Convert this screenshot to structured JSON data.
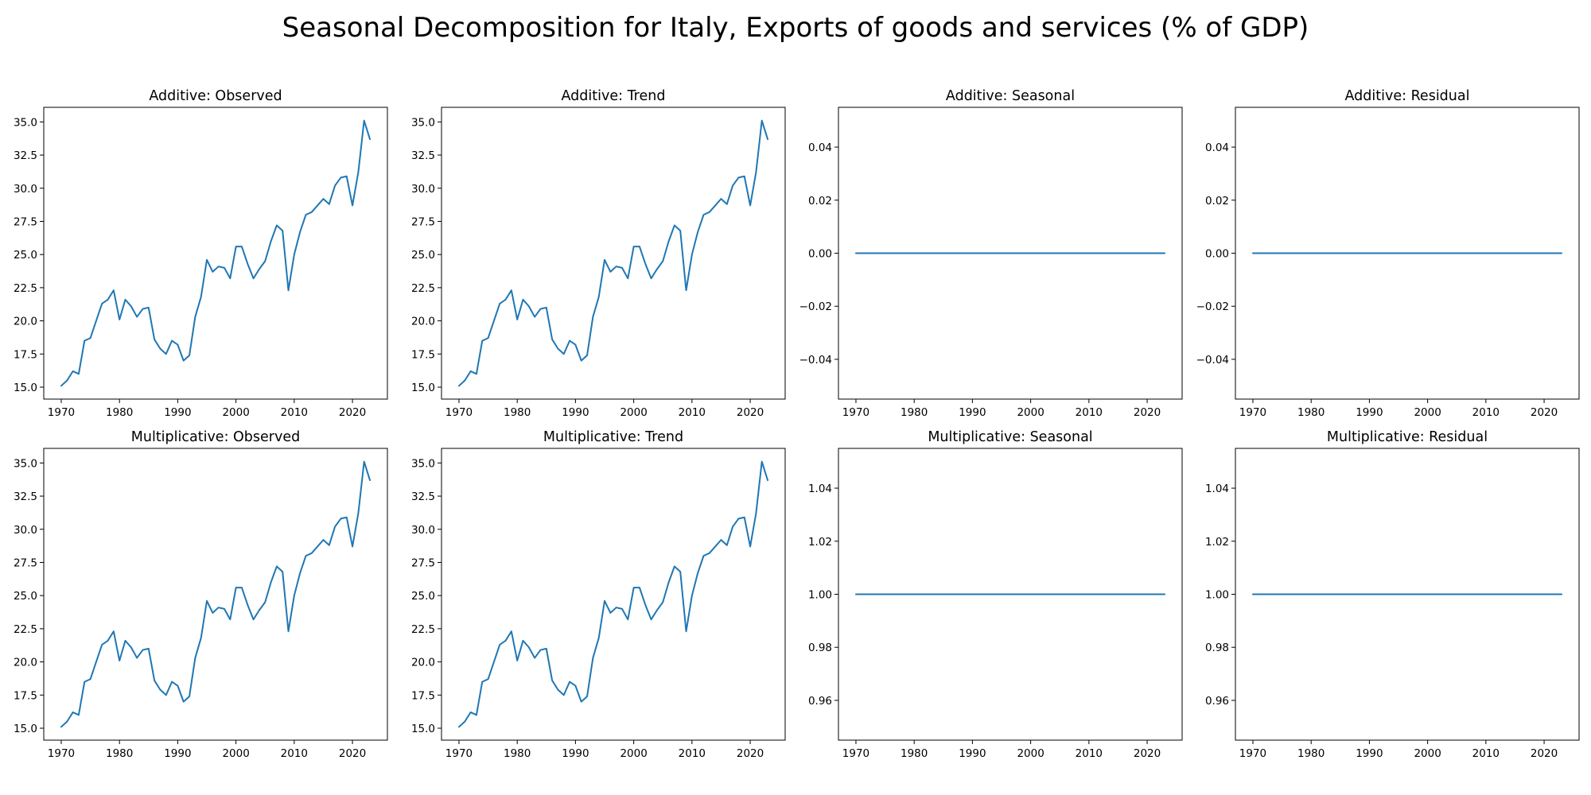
{
  "figure": {
    "title": "Seasonal Decomposition for Italy, Exports of goods and services (% of GDP)"
  },
  "chart_data": [
    {
      "id": "additive-observed",
      "type": "line",
      "title": "Additive: Observed",
      "xlabel": "",
      "ylabel": "",
      "color": "#1f77b4",
      "xlim": [
        1967,
        2026
      ],
      "ylim": [
        14.1,
        36.1
      ],
      "xticks": [
        1970,
        1980,
        1990,
        2000,
        2010,
        2020
      ],
      "xtick_labels": [
        "1970",
        "1980",
        "1990",
        "2000",
        "2010",
        "2020"
      ],
      "yticks": [
        15,
        17.5,
        20,
        22.5,
        25,
        27.5,
        30,
        32.5,
        35
      ],
      "ytick_labels": [
        "15.0",
        "17.5",
        "20.0",
        "22.5",
        "25.0",
        "27.5",
        "30.0",
        "32.5",
        "35.0"
      ],
      "series": [
        {
          "x": [
            1970,
            1971,
            1972,
            1973,
            1974,
            1975,
            1976,
            1977,
            1978,
            1979,
            1980,
            1981,
            1982,
            1983,
            1984,
            1985,
            1986,
            1987,
            1988,
            1989,
            1990,
            1991,
            1992,
            1993,
            1994,
            1995,
            1996,
            1997,
            1998,
            1999,
            2000,
            2001,
            2002,
            2003,
            2004,
            2005,
            2006,
            2007,
            2008,
            2009,
            2010,
            2011,
            2012,
            2013,
            2014,
            2015,
            2016,
            2017,
            2018,
            2019,
            2020,
            2021,
            2022,
            2023
          ],
          "values": [
            15.1,
            15.5,
            16.2,
            16.0,
            18.5,
            18.7,
            20.0,
            21.3,
            21.6,
            22.3,
            20.1,
            21.6,
            21.1,
            20.3,
            20.9,
            21.0,
            18.6,
            17.9,
            17.5,
            18.5,
            18.2,
            17.0,
            17.4,
            20.3,
            21.8,
            24.6,
            23.7,
            24.1,
            24.0,
            23.2,
            25.6,
            25.6,
            24.3,
            23.2,
            23.9,
            24.5,
            26.0,
            27.2,
            26.8,
            22.3,
            25.0,
            26.7,
            28.0,
            28.2,
            28.7,
            29.2,
            28.8,
            30.2,
            30.8,
            30.9,
            28.7,
            31.2,
            35.1,
            33.7
          ]
        }
      ]
    },
    {
      "id": "additive-trend",
      "type": "line",
      "title": "Additive: Trend",
      "xlabel": "",
      "ylabel": "",
      "color": "#1f77b4",
      "xlim": [
        1967,
        2026
      ],
      "ylim": [
        14.1,
        36.1
      ],
      "xticks": [
        1970,
        1980,
        1990,
        2000,
        2010,
        2020
      ],
      "xtick_labels": [
        "1970",
        "1980",
        "1990",
        "2000",
        "2010",
        "2020"
      ],
      "yticks": [
        15,
        17.5,
        20,
        22.5,
        25,
        27.5,
        30,
        32.5,
        35
      ],
      "ytick_labels": [
        "15.0",
        "17.5",
        "20.0",
        "22.5",
        "25.0",
        "27.5",
        "30.0",
        "32.5",
        "35.0"
      ],
      "series": [
        {
          "x": [
            1970,
            1971,
            1972,
            1973,
            1974,
            1975,
            1976,
            1977,
            1978,
            1979,
            1980,
            1981,
            1982,
            1983,
            1984,
            1985,
            1986,
            1987,
            1988,
            1989,
            1990,
            1991,
            1992,
            1993,
            1994,
            1995,
            1996,
            1997,
            1998,
            1999,
            2000,
            2001,
            2002,
            2003,
            2004,
            2005,
            2006,
            2007,
            2008,
            2009,
            2010,
            2011,
            2012,
            2013,
            2014,
            2015,
            2016,
            2017,
            2018,
            2019,
            2020,
            2021,
            2022,
            2023
          ],
          "values": [
            15.1,
            15.5,
            16.2,
            16.0,
            18.5,
            18.7,
            20.0,
            21.3,
            21.6,
            22.3,
            20.1,
            21.6,
            21.1,
            20.3,
            20.9,
            21.0,
            18.6,
            17.9,
            17.5,
            18.5,
            18.2,
            17.0,
            17.4,
            20.3,
            21.8,
            24.6,
            23.7,
            24.1,
            24.0,
            23.2,
            25.6,
            25.6,
            24.3,
            23.2,
            23.9,
            24.5,
            26.0,
            27.2,
            26.8,
            22.3,
            25.0,
            26.7,
            28.0,
            28.2,
            28.7,
            29.2,
            28.8,
            30.2,
            30.8,
            30.9,
            28.7,
            31.2,
            35.1,
            33.7
          ]
        }
      ]
    },
    {
      "id": "additive-seasonal",
      "type": "line",
      "title": "Additive: Seasonal",
      "xlabel": "",
      "ylabel": "",
      "color": "#1f77b4",
      "xlim": [
        1967,
        2026
      ],
      "ylim": [
        -0.055,
        0.055
      ],
      "xticks": [
        1970,
        1980,
        1990,
        2000,
        2010,
        2020
      ],
      "xtick_labels": [
        "1970",
        "1980",
        "1990",
        "2000",
        "2010",
        "2020"
      ],
      "yticks": [
        -0.04,
        -0.02,
        0,
        0.02,
        0.04
      ],
      "ytick_labels": [
        "−0.04",
        "−0.02",
        "0.00",
        "0.02",
        "0.04"
      ],
      "series": [
        {
          "x": [
            1970,
            2023
          ],
          "values": [
            0,
            0
          ]
        }
      ]
    },
    {
      "id": "additive-residual",
      "type": "line",
      "title": "Additive: Residual",
      "xlabel": "",
      "ylabel": "",
      "color": "#1f77b4",
      "xlim": [
        1967,
        2026
      ],
      "ylim": [
        -0.055,
        0.055
      ],
      "xticks": [
        1970,
        1980,
        1990,
        2000,
        2010,
        2020
      ],
      "xtick_labels": [
        "1970",
        "1980",
        "1990",
        "2000",
        "2010",
        "2020"
      ],
      "yticks": [
        -0.04,
        -0.02,
        0,
        0.02,
        0.04
      ],
      "ytick_labels": [
        "−0.04",
        "−0.02",
        "0.00",
        "0.02",
        "0.04"
      ],
      "series": [
        {
          "x": [
            1970,
            2023
          ],
          "values": [
            0,
            0
          ]
        }
      ]
    },
    {
      "id": "multiplicative-observed",
      "type": "line",
      "title": "Multiplicative: Observed",
      "xlabel": "",
      "ylabel": "",
      "color": "#1f77b4",
      "xlim": [
        1967,
        2026
      ],
      "ylim": [
        14.1,
        36.1
      ],
      "xticks": [
        1970,
        1980,
        1990,
        2000,
        2010,
        2020
      ],
      "xtick_labels": [
        "1970",
        "1980",
        "1990",
        "2000",
        "2010",
        "2020"
      ],
      "yticks": [
        15,
        17.5,
        20,
        22.5,
        25,
        27.5,
        30,
        32.5,
        35
      ],
      "ytick_labels": [
        "15.0",
        "17.5",
        "20.0",
        "22.5",
        "25.0",
        "27.5",
        "30.0",
        "32.5",
        "35.0"
      ],
      "series": [
        {
          "x": [
            1970,
            1971,
            1972,
            1973,
            1974,
            1975,
            1976,
            1977,
            1978,
            1979,
            1980,
            1981,
            1982,
            1983,
            1984,
            1985,
            1986,
            1987,
            1988,
            1989,
            1990,
            1991,
            1992,
            1993,
            1994,
            1995,
            1996,
            1997,
            1998,
            1999,
            2000,
            2001,
            2002,
            2003,
            2004,
            2005,
            2006,
            2007,
            2008,
            2009,
            2010,
            2011,
            2012,
            2013,
            2014,
            2015,
            2016,
            2017,
            2018,
            2019,
            2020,
            2021,
            2022,
            2023
          ],
          "values": [
            15.1,
            15.5,
            16.2,
            16.0,
            18.5,
            18.7,
            20.0,
            21.3,
            21.6,
            22.3,
            20.1,
            21.6,
            21.1,
            20.3,
            20.9,
            21.0,
            18.6,
            17.9,
            17.5,
            18.5,
            18.2,
            17.0,
            17.4,
            20.3,
            21.8,
            24.6,
            23.7,
            24.1,
            24.0,
            23.2,
            25.6,
            25.6,
            24.3,
            23.2,
            23.9,
            24.5,
            26.0,
            27.2,
            26.8,
            22.3,
            25.0,
            26.7,
            28.0,
            28.2,
            28.7,
            29.2,
            28.8,
            30.2,
            30.8,
            30.9,
            28.7,
            31.2,
            35.1,
            33.7
          ]
        }
      ]
    },
    {
      "id": "multiplicative-trend",
      "type": "line",
      "title": "Multiplicative: Trend",
      "xlabel": "",
      "ylabel": "",
      "color": "#1f77b4",
      "xlim": [
        1967,
        2026
      ],
      "ylim": [
        14.1,
        36.1
      ],
      "xticks": [
        1970,
        1980,
        1990,
        2000,
        2010,
        2020
      ],
      "xtick_labels": [
        "1970",
        "1980",
        "1990",
        "2000",
        "2010",
        "2020"
      ],
      "yticks": [
        15,
        17.5,
        20,
        22.5,
        25,
        27.5,
        30,
        32.5,
        35
      ],
      "ytick_labels": [
        "15.0",
        "17.5",
        "20.0",
        "22.5",
        "25.0",
        "27.5",
        "30.0",
        "32.5",
        "35.0"
      ],
      "series": [
        {
          "x": [
            1970,
            1971,
            1972,
            1973,
            1974,
            1975,
            1976,
            1977,
            1978,
            1979,
            1980,
            1981,
            1982,
            1983,
            1984,
            1985,
            1986,
            1987,
            1988,
            1989,
            1990,
            1991,
            1992,
            1993,
            1994,
            1995,
            1996,
            1997,
            1998,
            1999,
            2000,
            2001,
            2002,
            2003,
            2004,
            2005,
            2006,
            2007,
            2008,
            2009,
            2010,
            2011,
            2012,
            2013,
            2014,
            2015,
            2016,
            2017,
            2018,
            2019,
            2020,
            2021,
            2022,
            2023
          ],
          "values": [
            15.1,
            15.5,
            16.2,
            16.0,
            18.5,
            18.7,
            20.0,
            21.3,
            21.6,
            22.3,
            20.1,
            21.6,
            21.1,
            20.3,
            20.9,
            21.0,
            18.6,
            17.9,
            17.5,
            18.5,
            18.2,
            17.0,
            17.4,
            20.3,
            21.8,
            24.6,
            23.7,
            24.1,
            24.0,
            23.2,
            25.6,
            25.6,
            24.3,
            23.2,
            23.9,
            24.5,
            26.0,
            27.2,
            26.8,
            22.3,
            25.0,
            26.7,
            28.0,
            28.2,
            28.7,
            29.2,
            28.8,
            30.2,
            30.8,
            30.9,
            28.7,
            31.2,
            35.1,
            33.7
          ]
        }
      ]
    },
    {
      "id": "multiplicative-seasonal",
      "type": "line",
      "title": "Multiplicative: Seasonal",
      "xlabel": "",
      "ylabel": "",
      "color": "#1f77b4",
      "xlim": [
        1967,
        2026
      ],
      "ylim": [
        0.945,
        1.055
      ],
      "xticks": [
        1970,
        1980,
        1990,
        2000,
        2010,
        2020
      ],
      "xtick_labels": [
        "1970",
        "1980",
        "1990",
        "2000",
        "2010",
        "2020"
      ],
      "yticks": [
        0.96,
        0.98,
        1.0,
        1.02,
        1.04
      ],
      "ytick_labels": [
        "0.96",
        "0.98",
        "1.00",
        "1.02",
        "1.04"
      ],
      "series": [
        {
          "x": [
            1970,
            2023
          ],
          "values": [
            1,
            1
          ]
        }
      ]
    },
    {
      "id": "multiplicative-residual",
      "type": "line",
      "title": "Multiplicative: Residual",
      "xlabel": "",
      "ylabel": "",
      "color": "#1f77b4",
      "xlim": [
        1967,
        2026
      ],
      "ylim": [
        0.945,
        1.055
      ],
      "xticks": [
        1970,
        1980,
        1990,
        2000,
        2010,
        2020
      ],
      "xtick_labels": [
        "1970",
        "1980",
        "1990",
        "2000",
        "2010",
        "2020"
      ],
      "yticks": [
        0.96,
        0.98,
        1.0,
        1.02,
        1.04
      ],
      "ytick_labels": [
        "0.96",
        "0.98",
        "1.00",
        "1.02",
        "1.04"
      ],
      "series": [
        {
          "x": [
            1970,
            2023
          ],
          "values": [
            1,
            1
          ]
        }
      ]
    }
  ]
}
